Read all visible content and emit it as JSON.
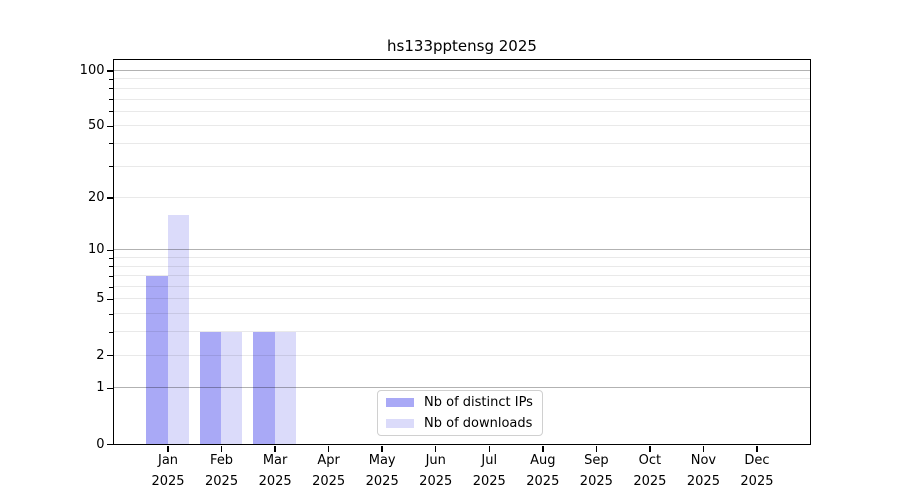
{
  "title": "hs133pptensg 2025",
  "chart_data": {
    "type": "bar",
    "title": "hs133pptensg 2025",
    "scale": "log1p",
    "categories": [
      "Jan",
      "Feb",
      "Mar",
      "Apr",
      "May",
      "Jun",
      "Jul",
      "Aug",
      "Sep",
      "Oct",
      "Nov",
      "Dec"
    ],
    "year_label": "2025",
    "series": [
      {
        "name": "Nb of distinct IPs",
        "color": "#a9a9f6",
        "values": [
          7,
          3,
          3,
          0,
          0,
          0,
          0,
          0,
          0,
          0,
          0,
          0
        ]
      },
      {
        "name": "Nb of downloads",
        "color": "#dbdbfa",
        "values": [
          16,
          3,
          3,
          0,
          0,
          0,
          0,
          0,
          0,
          0,
          0,
          0
        ]
      }
    ],
    "y_ticks": [
      0,
      1,
      2,
      5,
      10,
      20,
      50,
      100
    ],
    "y_major_gridlines": [
      1,
      10,
      100
    ],
    "y_minor_gridlines": [
      2,
      3,
      4,
      5,
      6,
      7,
      8,
      9,
      20,
      30,
      40,
      50,
      60,
      70,
      80,
      90
    ],
    "ylim": [
      0,
      114
    ],
    "xlim": [
      -1,
      12
    ],
    "bar_width_units": 0.4,
    "grid_on": true,
    "legend_position": "lower center",
    "xlabel": "",
    "ylabel": ""
  }
}
